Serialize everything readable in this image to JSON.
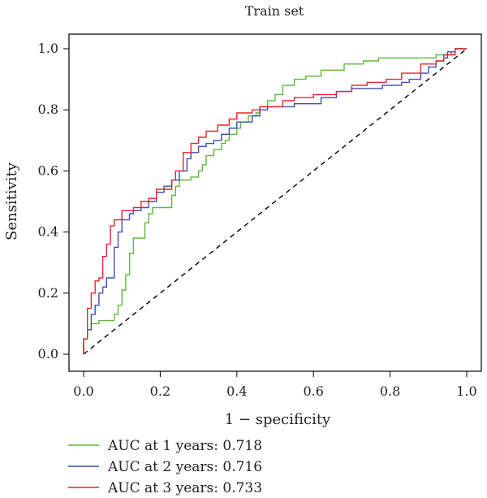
{
  "chart_data": {
    "type": "line",
    "title": "Train set",
    "xlabel": "1 − specificity",
    "ylabel": "Sensitivity",
    "xlim": [
      0.0,
      1.0
    ],
    "ylim": [
      0.0,
      1.0
    ],
    "x_ticks": [
      "0.0",
      "0.2",
      "0.4",
      "0.6",
      "0.8",
      "1.0"
    ],
    "y_ticks": [
      "0.0",
      "0.2",
      "0.4",
      "0.6",
      "0.8",
      "1.0"
    ],
    "grid": false,
    "legend_placement": "bottom-left, below plot",
    "reference_line": {
      "from": [
        0,
        0
      ],
      "to": [
        1,
        1
      ],
      "style": "dashed",
      "color": "#000000"
    },
    "series": [
      {
        "name": "AUC at 1 years: 0.718",
        "color": "#5cb83a",
        "points": [
          [
            0,
            0
          ],
          [
            0,
            0.05
          ],
          [
            0.01,
            0.05
          ],
          [
            0.01,
            0.08
          ],
          [
            0.02,
            0.08
          ],
          [
            0.02,
            0.1
          ],
          [
            0.04,
            0.1
          ],
          [
            0.04,
            0.11
          ],
          [
            0.06,
            0.11
          ],
          [
            0.08,
            0.11
          ],
          [
            0.08,
            0.13
          ],
          [
            0.09,
            0.13
          ],
          [
            0.09,
            0.16
          ],
          [
            0.1,
            0.16
          ],
          [
            0.1,
            0.21
          ],
          [
            0.11,
            0.21
          ],
          [
            0.11,
            0.26
          ],
          [
            0.12,
            0.26
          ],
          [
            0.12,
            0.33
          ],
          [
            0.13,
            0.33
          ],
          [
            0.13,
            0.38
          ],
          [
            0.16,
            0.38
          ],
          [
            0.16,
            0.43
          ],
          [
            0.17,
            0.43
          ],
          [
            0.17,
            0.46
          ],
          [
            0.18,
            0.46
          ],
          [
            0.18,
            0.48
          ],
          [
            0.23,
            0.48
          ],
          [
            0.23,
            0.52
          ],
          [
            0.24,
            0.52
          ],
          [
            0.24,
            0.55
          ],
          [
            0.25,
            0.55
          ],
          [
            0.25,
            0.57
          ],
          [
            0.28,
            0.57
          ],
          [
            0.28,
            0.58
          ],
          [
            0.3,
            0.58
          ],
          [
            0.3,
            0.6
          ],
          [
            0.31,
            0.6
          ],
          [
            0.31,
            0.62
          ],
          [
            0.32,
            0.62
          ],
          [
            0.32,
            0.65
          ],
          [
            0.34,
            0.65
          ],
          [
            0.34,
            0.67
          ],
          [
            0.36,
            0.67
          ],
          [
            0.36,
            0.69
          ],
          [
            0.37,
            0.69
          ],
          [
            0.37,
            0.7
          ],
          [
            0.38,
            0.7
          ],
          [
            0.38,
            0.72
          ],
          [
            0.4,
            0.72
          ],
          [
            0.4,
            0.74
          ],
          [
            0.41,
            0.74
          ],
          [
            0.41,
            0.76
          ],
          [
            0.43,
            0.76
          ],
          [
            0.43,
            0.78
          ],
          [
            0.45,
            0.78
          ],
          [
            0.45,
            0.79
          ],
          [
            0.46,
            0.79
          ],
          [
            0.46,
            0.81
          ],
          [
            0.48,
            0.81
          ],
          [
            0.48,
            0.83
          ],
          [
            0.5,
            0.83
          ],
          [
            0.5,
            0.85
          ],
          [
            0.52,
            0.85
          ],
          [
            0.52,
            0.88
          ],
          [
            0.55,
            0.88
          ],
          [
            0.55,
            0.9
          ],
          [
            0.58,
            0.9
          ],
          [
            0.58,
            0.91
          ],
          [
            0.62,
            0.91
          ],
          [
            0.62,
            0.93
          ],
          [
            0.68,
            0.93
          ],
          [
            0.68,
            0.95
          ],
          [
            0.73,
            0.95
          ],
          [
            0.73,
            0.96
          ],
          [
            0.77,
            0.96
          ],
          [
            0.77,
            0.97
          ],
          [
            0.92,
            0.97
          ],
          [
            0.92,
            0.98
          ],
          [
            0.96,
            0.98
          ],
          [
            0.96,
            0.99
          ],
          [
            0.97,
            0.99
          ],
          [
            0.97,
            1.0
          ],
          [
            1.0,
            1.0
          ]
        ]
      },
      {
        "name": "AUC at 2 years: 0.716",
        "color": "#3d4fb0",
        "points": [
          [
            0,
            0
          ],
          [
            0,
            0.05
          ],
          [
            0.01,
            0.05
          ],
          [
            0.01,
            0.08
          ],
          [
            0.02,
            0.08
          ],
          [
            0.02,
            0.13
          ],
          [
            0.03,
            0.13
          ],
          [
            0.03,
            0.16
          ],
          [
            0.04,
            0.16
          ],
          [
            0.04,
            0.2
          ],
          [
            0.05,
            0.2
          ],
          [
            0.05,
            0.22
          ],
          [
            0.06,
            0.22
          ],
          [
            0.06,
            0.25
          ],
          [
            0.08,
            0.25
          ],
          [
            0.08,
            0.35
          ],
          [
            0.09,
            0.35
          ],
          [
            0.09,
            0.4
          ],
          [
            0.1,
            0.4
          ],
          [
            0.1,
            0.44
          ],
          [
            0.12,
            0.44
          ],
          [
            0.12,
            0.46
          ],
          [
            0.13,
            0.46
          ],
          [
            0.13,
            0.47
          ],
          [
            0.15,
            0.47
          ],
          [
            0.15,
            0.48
          ],
          [
            0.17,
            0.48
          ],
          [
            0.17,
            0.5
          ],
          [
            0.19,
            0.5
          ],
          [
            0.19,
            0.53
          ],
          [
            0.21,
            0.53
          ],
          [
            0.21,
            0.55
          ],
          [
            0.23,
            0.55
          ],
          [
            0.23,
            0.57
          ],
          [
            0.25,
            0.57
          ],
          [
            0.25,
            0.6
          ],
          [
            0.27,
            0.6
          ],
          [
            0.27,
            0.64
          ],
          [
            0.28,
            0.64
          ],
          [
            0.28,
            0.66
          ],
          [
            0.3,
            0.66
          ],
          [
            0.3,
            0.68
          ],
          [
            0.32,
            0.68
          ],
          [
            0.32,
            0.69
          ],
          [
            0.34,
            0.69
          ],
          [
            0.34,
            0.7
          ],
          [
            0.36,
            0.7
          ],
          [
            0.36,
            0.72
          ],
          [
            0.38,
            0.72
          ],
          [
            0.38,
            0.74
          ],
          [
            0.4,
            0.74
          ],
          [
            0.4,
            0.76
          ],
          [
            0.44,
            0.76
          ],
          [
            0.44,
            0.78
          ],
          [
            0.46,
            0.78
          ],
          [
            0.46,
            0.8
          ],
          [
            0.48,
            0.8
          ],
          [
            0.48,
            0.81
          ],
          [
            0.55,
            0.81
          ],
          [
            0.55,
            0.82
          ],
          [
            0.62,
            0.82
          ],
          [
            0.62,
            0.84
          ],
          [
            0.66,
            0.84
          ],
          [
            0.66,
            0.86
          ],
          [
            0.7,
            0.86
          ],
          [
            0.7,
            0.87
          ],
          [
            0.78,
            0.87
          ],
          [
            0.78,
            0.88
          ],
          [
            0.83,
            0.88
          ],
          [
            0.83,
            0.89
          ],
          [
            0.85,
            0.89
          ],
          [
            0.85,
            0.9
          ],
          [
            0.88,
            0.9
          ],
          [
            0.88,
            0.92
          ],
          [
            0.9,
            0.92
          ],
          [
            0.9,
            0.94
          ],
          [
            0.92,
            0.94
          ],
          [
            0.92,
            0.96
          ],
          [
            0.94,
            0.96
          ],
          [
            0.94,
            0.97
          ],
          [
            0.95,
            0.97
          ],
          [
            0.95,
            0.99
          ],
          [
            0.97,
            0.99
          ],
          [
            0.97,
            1.0
          ],
          [
            1.0,
            1.0
          ]
        ]
      },
      {
        "name": "AUC at 3 years: 0.733",
        "color": "#e8252a",
        "points": [
          [
            0,
            0
          ],
          [
            0,
            0.05
          ],
          [
            0.01,
            0.05
          ],
          [
            0.01,
            0.15
          ],
          [
            0.02,
            0.15
          ],
          [
            0.02,
            0.2
          ],
          [
            0.03,
            0.2
          ],
          [
            0.03,
            0.24
          ],
          [
            0.04,
            0.24
          ],
          [
            0.04,
            0.25
          ],
          [
            0.05,
            0.25
          ],
          [
            0.05,
            0.32
          ],
          [
            0.06,
            0.32
          ],
          [
            0.06,
            0.36
          ],
          [
            0.07,
            0.36
          ],
          [
            0.07,
            0.42
          ],
          [
            0.08,
            0.42
          ],
          [
            0.08,
            0.44
          ],
          [
            0.1,
            0.44
          ],
          [
            0.1,
            0.47
          ],
          [
            0.13,
            0.47
          ],
          [
            0.13,
            0.48
          ],
          [
            0.15,
            0.48
          ],
          [
            0.15,
            0.5
          ],
          [
            0.17,
            0.5
          ],
          [
            0.17,
            0.51
          ],
          [
            0.19,
            0.51
          ],
          [
            0.19,
            0.54
          ],
          [
            0.23,
            0.54
          ],
          [
            0.23,
            0.57
          ],
          [
            0.24,
            0.57
          ],
          [
            0.24,
            0.6
          ],
          [
            0.26,
            0.6
          ],
          [
            0.26,
            0.66
          ],
          [
            0.28,
            0.66
          ],
          [
            0.28,
            0.69
          ],
          [
            0.3,
            0.69
          ],
          [
            0.3,
            0.71
          ],
          [
            0.32,
            0.71
          ],
          [
            0.32,
            0.73
          ],
          [
            0.35,
            0.73
          ],
          [
            0.35,
            0.75
          ],
          [
            0.38,
            0.75
          ],
          [
            0.38,
            0.77
          ],
          [
            0.4,
            0.77
          ],
          [
            0.4,
            0.79
          ],
          [
            0.44,
            0.79
          ],
          [
            0.44,
            0.8
          ],
          [
            0.46,
            0.8
          ],
          [
            0.46,
            0.81
          ],
          [
            0.52,
            0.81
          ],
          [
            0.52,
            0.83
          ],
          [
            0.55,
            0.83
          ],
          [
            0.55,
            0.84
          ],
          [
            0.6,
            0.84
          ],
          [
            0.6,
            0.85
          ],
          [
            0.66,
            0.85
          ],
          [
            0.66,
            0.86
          ],
          [
            0.7,
            0.86
          ],
          [
            0.7,
            0.88
          ],
          [
            0.74,
            0.88
          ],
          [
            0.74,
            0.89
          ],
          [
            0.79,
            0.89
          ],
          [
            0.79,
            0.9
          ],
          [
            0.83,
            0.9
          ],
          [
            0.83,
            0.92
          ],
          [
            0.88,
            0.92
          ],
          [
            0.88,
            0.95
          ],
          [
            0.92,
            0.95
          ],
          [
            0.92,
            0.96
          ],
          [
            0.94,
            0.96
          ],
          [
            0.94,
            0.98
          ],
          [
            0.97,
            0.98
          ],
          [
            0.97,
            1.0
          ],
          [
            1.0,
            1.0
          ]
        ]
      }
    ]
  }
}
